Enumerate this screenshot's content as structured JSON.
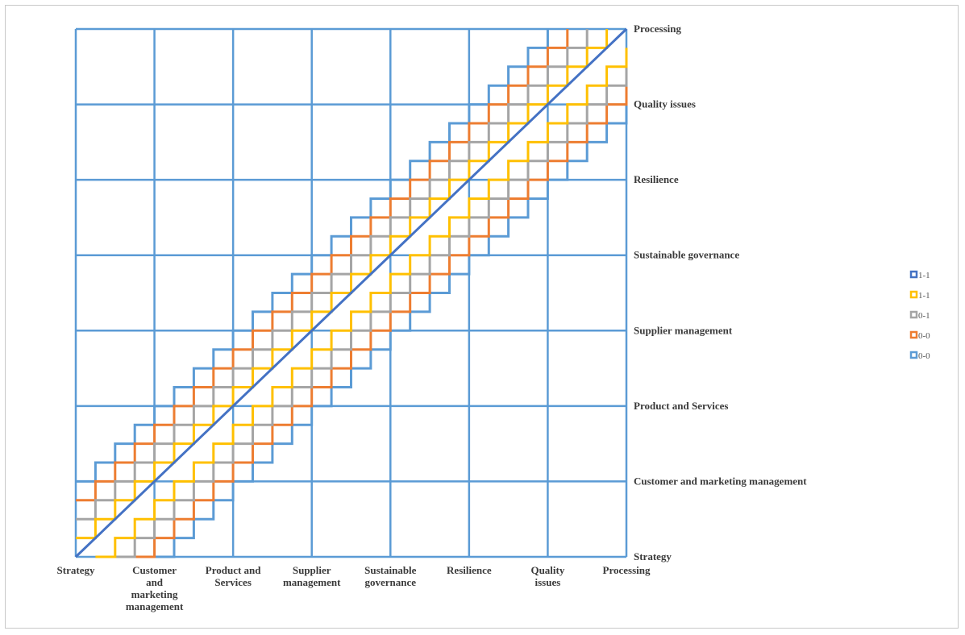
{
  "chart_data": {
    "type": "line",
    "categories": [
      "Strategy",
      "Customer and marketing management",
      "Product and Services",
      "Supplier management",
      "Sustainable governance",
      "Resilience",
      "Quality issues",
      "Processing"
    ],
    "x_tick_labels": [
      [
        "Strategy"
      ],
      [
        "Customer",
        "and",
        "marketing",
        "management"
      ],
      [
        "Product and",
        "Services"
      ],
      [
        "Supplier",
        "management"
      ],
      [
        "Sustainable",
        "governance"
      ],
      [
        "Resilience"
      ],
      [
        "Quality",
        "issues"
      ],
      [
        "Processing"
      ]
    ],
    "y_tick_labels": [
      "Strategy",
      "Customer and marketing management",
      "Product and Services",
      "Supplier management",
      "Sustainable governance",
      "Resilience",
      "Quality issues",
      "Processing"
    ],
    "xlim": [
      0,
      7
    ],
    "ylim": [
      0,
      7
    ],
    "grid": true,
    "legend_placement": "right",
    "series": [
      {
        "name": "1-1",
        "color": "#4472c4",
        "offset": 0
      },
      {
        "name": "1-1",
        "color": "#ffc000",
        "offset": 0.25
      },
      {
        "name": "0-1",
        "color": "#a5a5a5",
        "offset": 0.5
      },
      {
        "name": "0-0",
        "color": "#ed7d31",
        "offset": 0.75
      },
      {
        "name": "0-0",
        "color": "#5b9bd5",
        "offset": 1.0
      }
    ],
    "grid_color": "#5b9bd5"
  }
}
